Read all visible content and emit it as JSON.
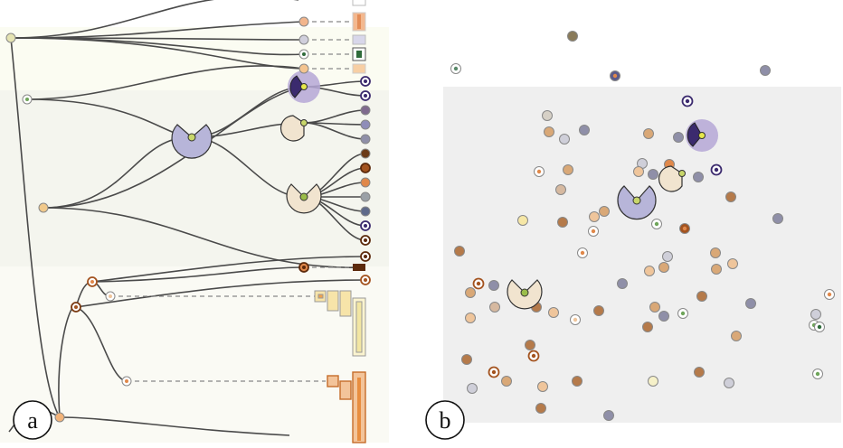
{
  "panels": [
    {
      "id": "a",
      "label": "a"
    },
    {
      "id": "b",
      "label": "b"
    }
  ],
  "colors": {
    "purple_dark": "#3b2a6e",
    "purple_mid": "#8f8db8",
    "purple_light": "#b9b7d9",
    "cream": "#f1e4cf",
    "tan": "#d9a877",
    "peach": "#efc59b",
    "orange": "#e0884a",
    "brown": "#a3531f",
    "dark_brown": "#5c2a0c",
    "yellow_green": "#cddc5a",
    "pale_yellow": "#f6e7a6",
    "gray_blue": "#7f83a0",
    "green_dark": "#2f6b3a"
  },
  "icons": [
    "node-circle",
    "pie-glyph",
    "dashed-connector",
    "legend-bar"
  ]
}
